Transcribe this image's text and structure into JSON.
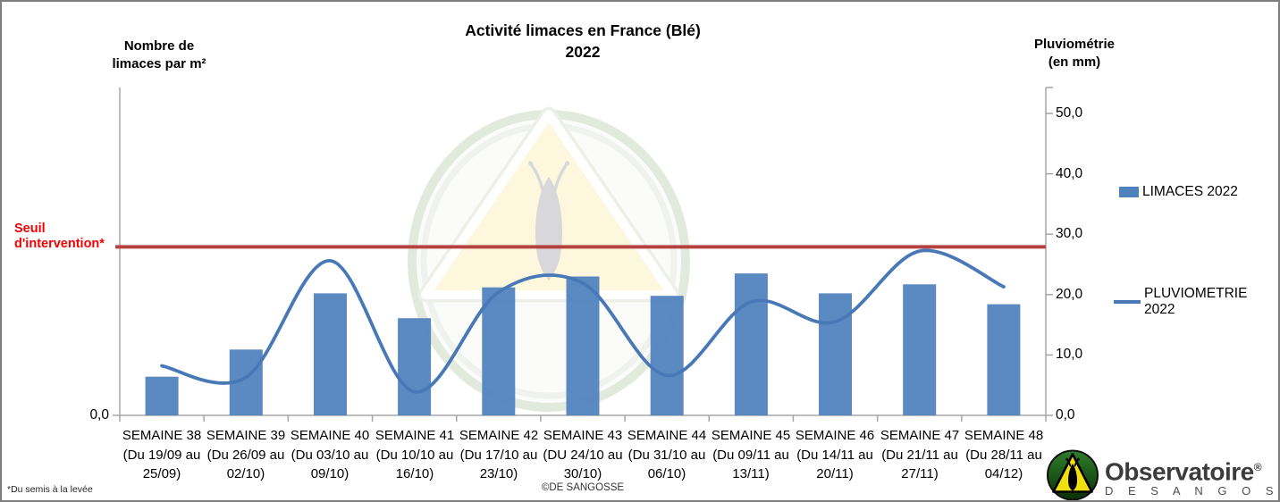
{
  "title": {
    "line1": "Activité limaces en France (Blé)",
    "line2": "2022"
  },
  "left_axis": {
    "title_line1": "Nombre de",
    "title_line2": "limaces par m²",
    "tick_label": "0,0"
  },
  "right_axis": {
    "title_line1": "Pluviométrie",
    "title_line2": "(en mm)",
    "tick_labels": [
      "50,0",
      "40,0",
      "30,0",
      "20,0",
      "10,0",
      "0,0"
    ],
    "tick_values": [
      50,
      40,
      30,
      20,
      10,
      0
    ]
  },
  "threshold": {
    "label_line1": "Seuil",
    "label_line2": "d'intervention*"
  },
  "legend": {
    "items": [
      {
        "label": "LIMACES 2022",
        "marker": "bar"
      },
      {
        "label": "PLUVIOMETRIE 2022",
        "marker": "line"
      }
    ]
  },
  "footnote": "*Du semis à la levée",
  "copyright": "©DE SANGOSSE",
  "logo": {
    "brand": "Observatoire",
    "registered": "®",
    "subtitle": "D E   S A N G O S S E"
  },
  "colors": {
    "bar": "#4f81bd",
    "line": "#4878b6",
    "threshold": "#b5423e",
    "threshold_label": "#f40000",
    "axis": "#a6a6a6"
  },
  "chart_data": {
    "type": "combo",
    "title": "Activité limaces en France (Blé) 2022",
    "categories": [
      {
        "week": "SEMAINE 38",
        "sub1": "(Du 19/09 au",
        "sub2": "25/09)"
      },
      {
        "week": "SEMAINE 39",
        "sub1": "(Du 26/09 au",
        "sub2": "02/10)"
      },
      {
        "week": "SEMAINE 40",
        "sub1": "(Du 03/10 au",
        "sub2": "09/10)"
      },
      {
        "week": "SEMAINE 41",
        "sub1": "(Du 10/10 au",
        "sub2": "16/10)"
      },
      {
        "week": "SEMAINE 42",
        "sub1": "(Du 17/10 au",
        "sub2": "23/10)"
      },
      {
        "week": "SEMAINE 43",
        "sub1": "(DU 24/10 au",
        "sub2": "30/10)"
      },
      {
        "week": "SEMAINE 44",
        "sub1": "(Du 31/10 au",
        "sub2": "06/10)"
      },
      {
        "week": "SEMAINE 45",
        "sub1": "(Du 09/11 au",
        "sub2": "13/11)"
      },
      {
        "week": "SEMAINE 46",
        "sub1": "(Du 14/11 au",
        "sub2": "20/11)"
      },
      {
        "week": "SEMAINE 47",
        "sub1": "(Du 21/11 au",
        "sub2": "27/11)"
      },
      {
        "week": "SEMAINE 48",
        "sub1": "(Du 28/11 au",
        "sub2": "04/12)"
      }
    ],
    "series": [
      {
        "name": "LIMACES 2022",
        "type": "bar",
        "axis": "left",
        "color": "#4f81bd",
        "values": [
          6.4,
          10.9,
          20.2,
          16.1,
          21.2,
          23.0,
          19.8,
          23.5,
          20.2,
          21.7,
          18.4
        ],
        "note": "left axis shows only the 0,0 tick; values estimated on the shared 0–50 plot scale"
      },
      {
        "name": "PLUVIOMETRIE 2022",
        "type": "line",
        "axis": "right",
        "unit": "mm",
        "color": "#4878b6",
        "values": [
          8.2,
          6.3,
          25.6,
          3.9,
          20.4,
          21.9,
          6.6,
          18.8,
          15.5,
          27.2,
          21.3
        ]
      }
    ],
    "right_axis": {
      "label": "Pluviométrie (en mm)",
      "min": 0,
      "max": 50,
      "ticks": [
        0,
        10,
        20,
        30,
        40,
        50
      ]
    },
    "left_axis": {
      "label": "Nombre de limaces par m²",
      "visible_ticks": [
        "0,0"
      ]
    },
    "threshold_line": {
      "label": "Seuil d'intervention*",
      "value": 27.9,
      "color": "#b5423e"
    },
    "grid": false,
    "legend_position": "right",
    "line_style": "smoothed"
  }
}
